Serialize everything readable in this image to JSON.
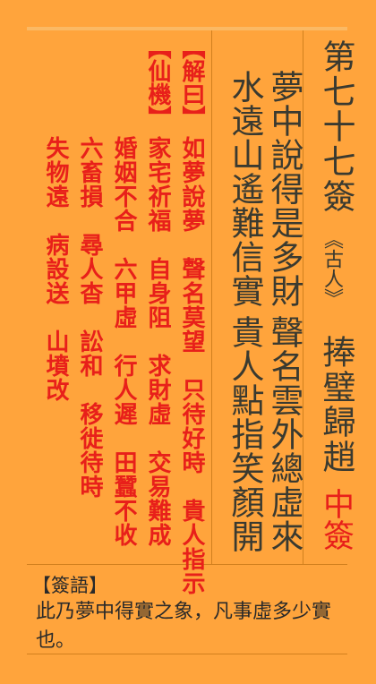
{
  "fortune": {
    "title": "第七十七簽",
    "subtitle": "《古人》",
    "story": "捧璧歸趙",
    "grade": "中簽"
  },
  "poem": {
    "line1": "夢中說得是多財",
    "line2": "聲名雲外總虛來",
    "line3": "水遠山遙難信實",
    "line4": "貴人點指笑顏開"
  },
  "jieyue": {
    "header": "【解曰】",
    "col1": "如夢說夢　聲名莫望　只待好時　貴人指示"
  },
  "xianji": {
    "header": "【仙機】",
    "col1": "家宅祈福　自身阻　求財虛　交易難成",
    "col2": "婚姻不合　六甲虛　行人遲　田蠶不收",
    "col3": "六畜損　尋人杳　訟和　移徙待時",
    "col4": "失物遠　病設送　山墳改"
  },
  "qianyu": {
    "label": "【簽語】",
    "text": "此乃夢中得實之象，凡事虛多少實也。"
  }
}
